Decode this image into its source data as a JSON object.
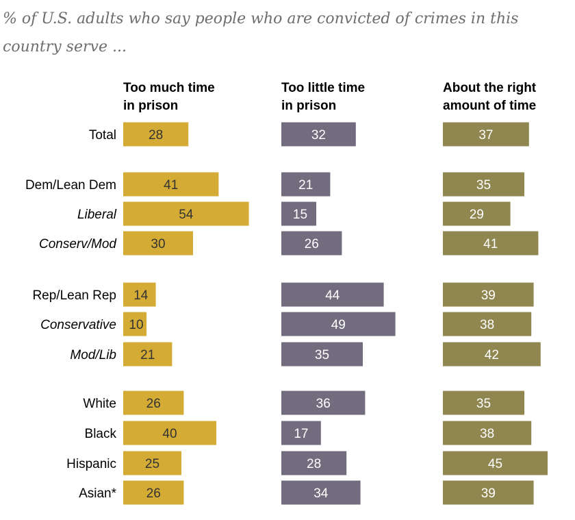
{
  "chart_data": {
    "type": "bar",
    "subtitle": [
      "% of U.S. adults who say people who are convicted of crimes in this",
      "country serve ..."
    ],
    "categories": [
      "Total",
      "Dem/Lean Dem",
      "Liberal",
      "Conserv/Mod",
      "Rep/Lean Rep",
      "Conservative",
      "Mod/Lib",
      "White",
      "Black",
      "Hispanic",
      "Asian*"
    ],
    "italic_categories": [
      "Liberal",
      "Conserv/Mod",
      "Conservative",
      "Mod/Lib"
    ],
    "series": [
      {
        "name": "Too much time in prison",
        "header": [
          "Too much time",
          "in prison"
        ],
        "color": "#d4ab34",
        "label_color": "#333333",
        "values": [
          28,
          41,
          54,
          30,
          14,
          10,
          21,
          26,
          40,
          25,
          26
        ]
      },
      {
        "name": "Too little time in prison",
        "header": [
          "Too little time",
          "in prison"
        ],
        "color": "#726c7e",
        "label_color": "#ffffff",
        "values": [
          32,
          21,
          15,
          26,
          44,
          49,
          35,
          36,
          17,
          28,
          34
        ]
      },
      {
        "name": "About the right amount of time",
        "header": [
          "About the right",
          "amount of time"
        ],
        "color": "#8f8650",
        "label_color": "#ffffff",
        "values": [
          37,
          35,
          29,
          41,
          39,
          38,
          42,
          35,
          38,
          45,
          39
        ]
      }
    ]
  }
}
